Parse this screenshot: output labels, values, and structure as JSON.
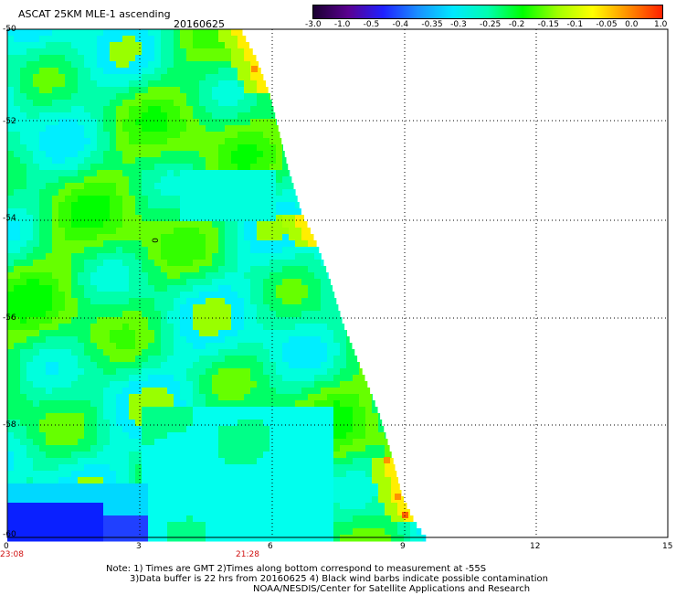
{
  "header": {
    "title": "ASCAT 25KM MLE-1 ascending",
    "date": "20160625"
  },
  "colorbar": {
    "labels": [
      "-3.0",
      "-1.0",
      "-0.5",
      "-0.4",
      "-0.35",
      "-0.3",
      "-0.25",
      "-0.2",
      "-0.15",
      "-0.1",
      "-0.05",
      "0.0",
      "1.0"
    ],
    "colors": [
      "#1a0030",
      "#5a0090",
      "#2020ff",
      "#1a90ff",
      "#00e8ff",
      "#00ffb0",
      "#00ff00",
      "#a0ff00",
      "#ffff00",
      "#ff9000",
      "#ff2000"
    ]
  },
  "axes": {
    "y_labels": [
      "-50",
      "-52",
      "-54",
      "-56",
      "-58",
      "-60"
    ],
    "x_labels": [
      "0",
      "3",
      "6",
      "9",
      "12",
      "15"
    ],
    "time_labels": [
      "23:08",
      "21:28"
    ]
  },
  "annotation": "0",
  "notes": {
    "line1": "Note: 1) Times are GMT 2)Times along bottom correspond to measurement at -55S",
    "line2": "3)Data buffer is 22 hrs from 20160625 4) Black wind barbs indicate possible contamination",
    "line3": "NOAA/NESDIS/Center for Satellite Applications and Research"
  }
}
